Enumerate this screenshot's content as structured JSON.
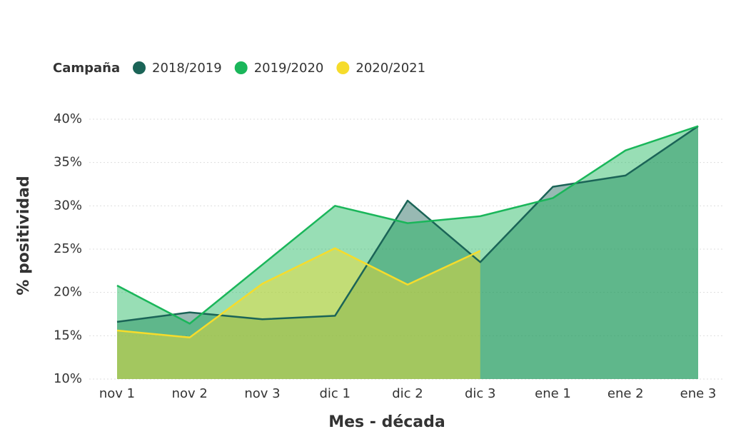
{
  "chart_data": {
    "type": "area",
    "legend_title": "Campaña",
    "xlabel": "Mes - década",
    "ylabel": "% positividad",
    "categories": [
      "nov 1",
      "nov 2",
      "nov 3",
      "dic 1",
      "dic 2",
      "dic 3",
      "ene 1",
      "ene 2",
      "ene 3"
    ],
    "series": [
      {
        "name": "2018/2019",
        "color": "#1b6457",
        "values": [
          16.6,
          17.7,
          16.9,
          17.3,
          30.6,
          23.5,
          32.2,
          33.5,
          39.2
        ]
      },
      {
        "name": "2019/2020",
        "color": "#1ab65a",
        "values": [
          20.8,
          16.4,
          23.2,
          30.0,
          28.0,
          28.8,
          30.9,
          36.4,
          39.2
        ]
      },
      {
        "name": "2020/2021",
        "color": "#f6dc2b",
        "values": [
          15.6,
          14.8,
          21.0,
          25.1,
          20.9,
          24.8,
          null,
          null,
          null
        ]
      }
    ],
    "ylim": [
      10,
      40
    ],
    "yticks": [
      {
        "value": 10,
        "label": "10%"
      },
      {
        "value": 15,
        "label": "15%"
      },
      {
        "value": 20,
        "label": "20%"
      },
      {
        "value": 25,
        "label": "25%"
      },
      {
        "value": 30,
        "label": "30%"
      },
      {
        "value": 35,
        "label": "35%"
      },
      {
        "value": 40,
        "label": "40%"
      }
    ],
    "grid": true
  }
}
